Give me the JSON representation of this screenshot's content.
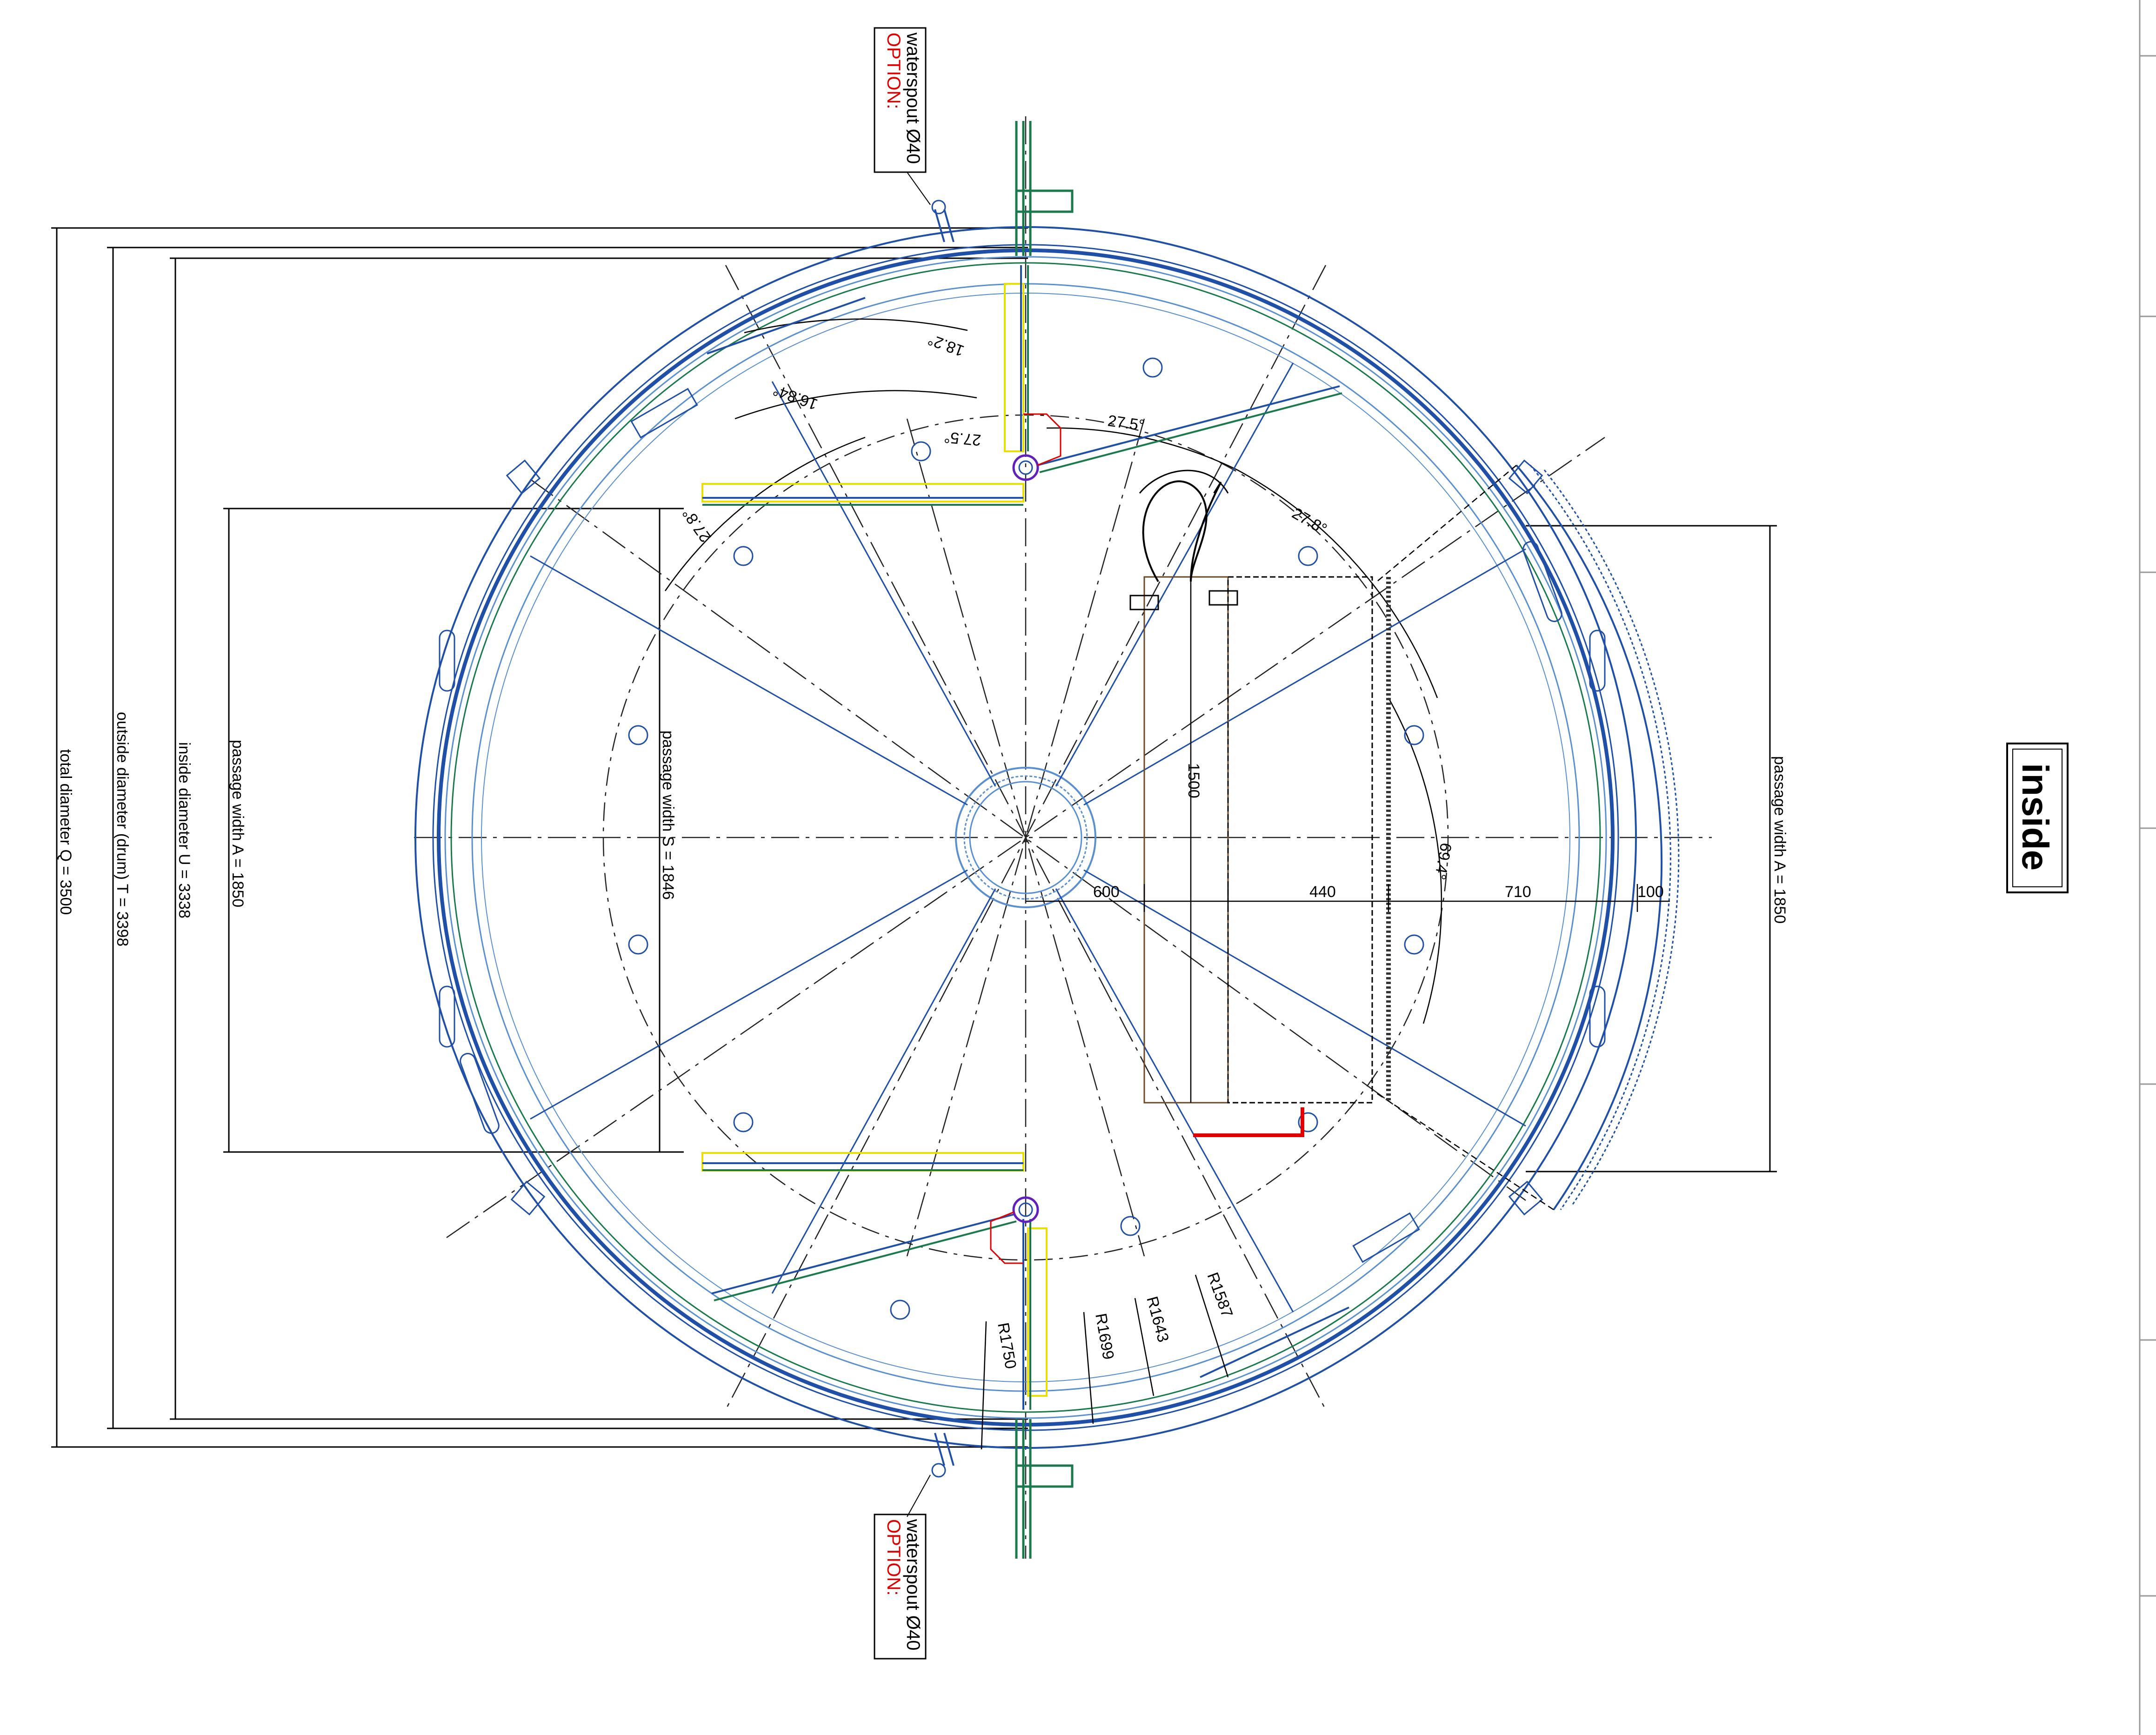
{
  "dimensions": {
    "total": "total diameter Q = 3500",
    "outside": "outside diameter (drum) T = 3398",
    "inside": "inside diameter U = 3338",
    "passage_a_left": "passage width A = 1850",
    "passage_s": "passage width S = 1846",
    "passage_a_right": "passage width A = 1850"
  },
  "options": {
    "top": {
      "label": "OPTION:",
      "text": "waterspout Ø40"
    },
    "bottom": {
      "label": "OPTION:",
      "text": "waterspout Ø40"
    }
  },
  "angles": [
    "18.2°",
    "16.84°",
    "27.5°",
    "27.5°",
    "27.8°",
    "27.8°",
    "69.4°"
  ],
  "linear": [
    "1500",
    "600",
    "440",
    "710",
    "100"
  ],
  "radii": [
    "R1750",
    "R1699",
    "R1643",
    "R1587"
  ],
  "view_label": "inside",
  "colors": {
    "blue": "#1f4fa6",
    "light_blue": "#5a8fd0",
    "green": "#1a7a4c",
    "red": "#e00000",
    "yellow": "#e8e000",
    "brown": "#6b4a2a"
  }
}
